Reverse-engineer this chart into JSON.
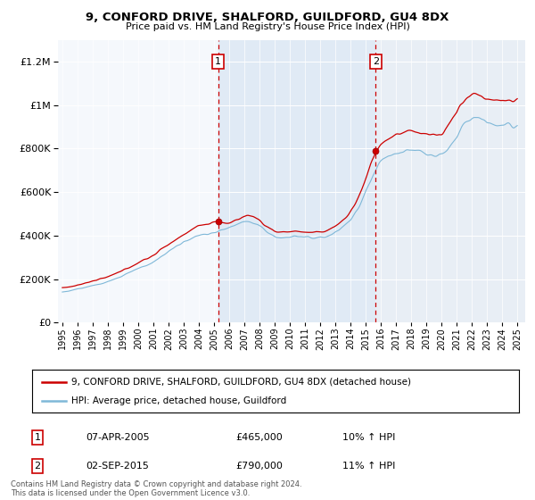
{
  "title1": "9, CONFORD DRIVE, SHALFORD, GUILDFORD, GU4 8DX",
  "title2": "Price paid vs. HM Land Registry's House Price Index (HPI)",
  "legend_line1": "9, CONFORD DRIVE, SHALFORD, GUILDFORD, GU4 8DX (detached house)",
  "legend_line2": "HPI: Average price, detached house, Guildford",
  "annotation1_label": "1",
  "annotation1_date": "07-APR-2005",
  "annotation1_price": "£465,000",
  "annotation1_hpi": "10% ↑ HPI",
  "annotation1_year": 2005.27,
  "annotation1_value": 465000,
  "annotation2_label": "2",
  "annotation2_date": "02-SEP-2015",
  "annotation2_price": "£790,000",
  "annotation2_hpi": "11% ↑ HPI",
  "annotation2_year": 2015.67,
  "annotation2_value": 790000,
  "footer": "Contains HM Land Registry data © Crown copyright and database right 2024.\nThis data is licensed under the Open Government Licence v3.0.",
  "hpi_color": "#7fb8d8",
  "price_color": "#cc0000",
  "shaded_color": "#ddeeff",
  "ylim": [
    0,
    1300000
  ],
  "xlim_start": 1994.7,
  "xlim_end": 2025.5,
  "shade_start": 2005.27,
  "shade_end": 2015.67
}
